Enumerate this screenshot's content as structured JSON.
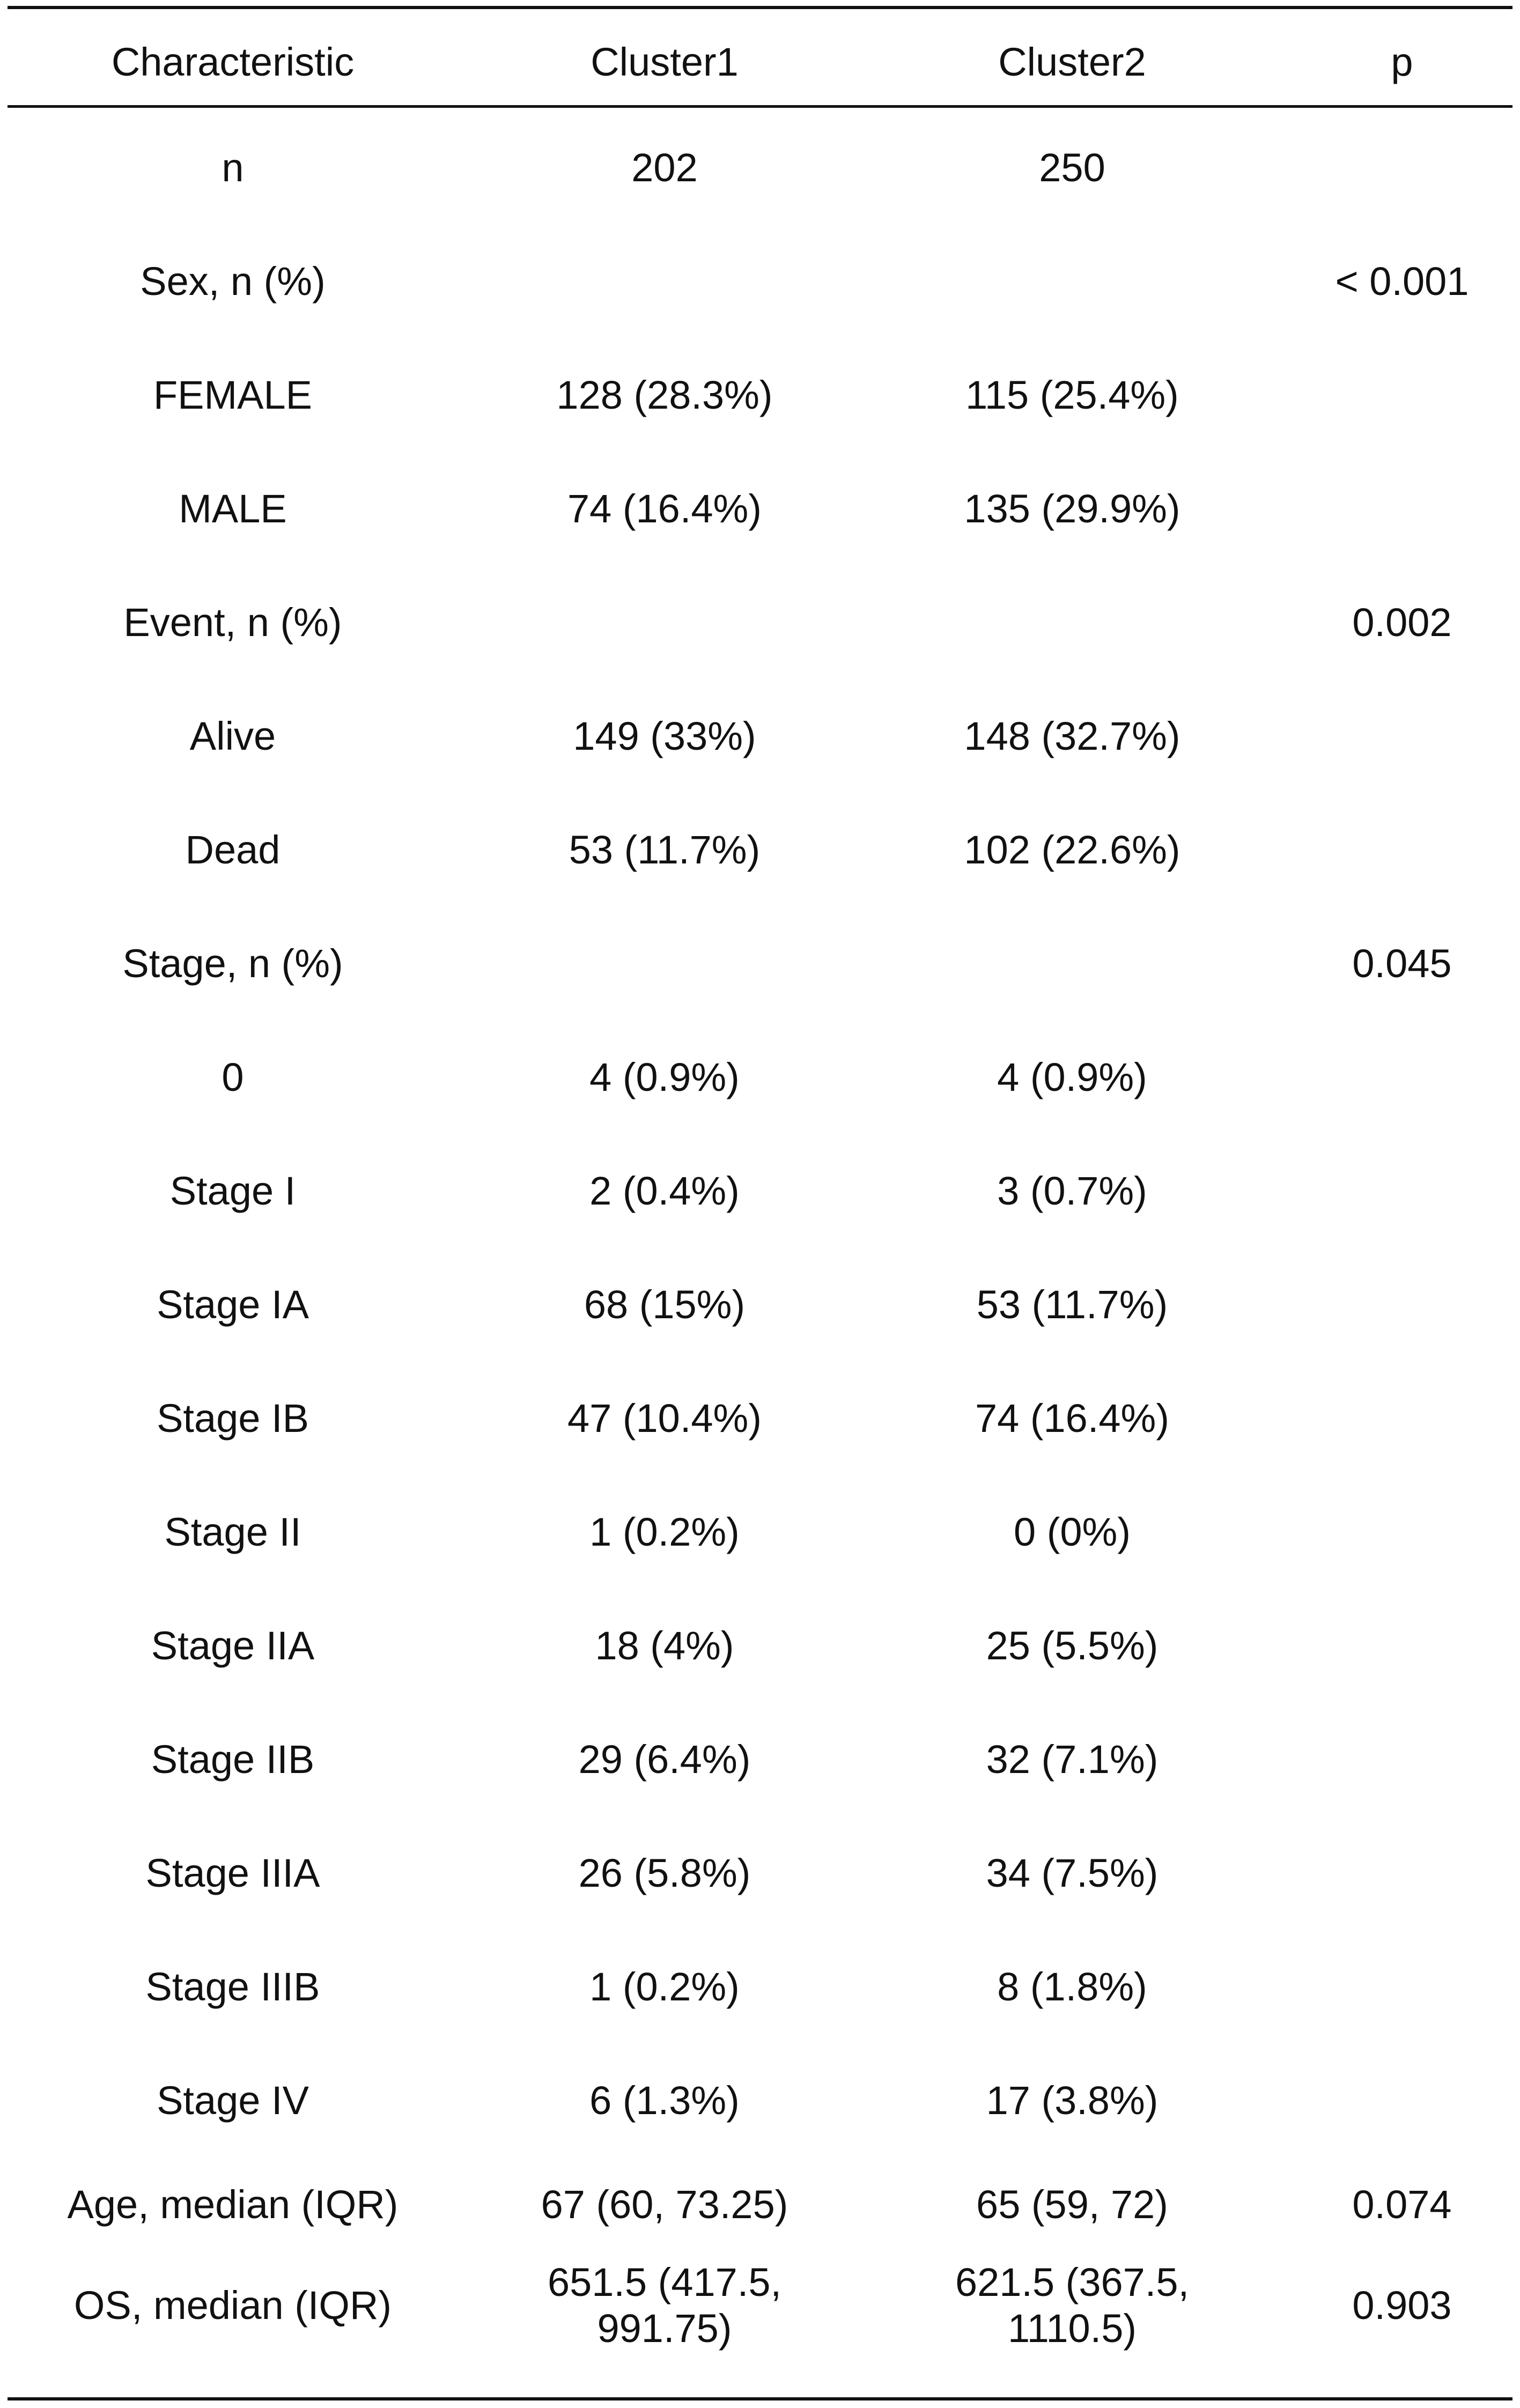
{
  "table": {
    "headers": [
      "Characteristic",
      "Cluster1",
      "Cluster2",
      "p"
    ],
    "rows": [
      [
        "n",
        "202",
        "250",
        ""
      ],
      [
        "Sex, n (%)",
        "",
        "",
        "< 0.001"
      ],
      [
        "FEMALE",
        "128 (28.3%)",
        "115 (25.4%)",
        ""
      ],
      [
        "MALE",
        "74 (16.4%)",
        "135 (29.9%)",
        ""
      ],
      [
        "Event, n (%)",
        "",
        "",
        "0.002"
      ],
      [
        "Alive",
        "149 (33%)",
        "148 (32.7%)",
        ""
      ],
      [
        "Dead",
        "53 (11.7%)",
        "102 (22.6%)",
        ""
      ],
      [
        "Stage, n (%)",
        "",
        "",
        "0.045"
      ],
      [
        "0",
        "4 (0.9%)",
        "4 (0.9%)",
        ""
      ],
      [
        "Stage I",
        "2 (0.4%)",
        "3 (0.7%)",
        ""
      ],
      [
        "Stage IA",
        "68 (15%)",
        "53 (11.7%)",
        ""
      ],
      [
        "Stage IB",
        "47 (10.4%)",
        "74 (16.4%)",
        ""
      ],
      [
        "Stage II",
        "1 (0.2%)",
        "0 (0%)",
        ""
      ],
      [
        "Stage IIA",
        "18 (4%)",
        "25 (5.5%)",
        ""
      ],
      [
        "Stage IIB",
        "29 (6.4%)",
        "32 (7.1%)",
        ""
      ],
      [
        "Stage IIIA",
        "26 (5.8%)",
        "34 (7.5%)",
        ""
      ],
      [
        "Stage IIIB",
        "1 (0.2%)",
        "8 (1.8%)",
        ""
      ],
      [
        "Stage IV",
        "6 (1.3%)",
        "17 (3.8%)",
        ""
      ],
      [
        "Age, median (IQR)",
        "67 (60, 73.25)",
        "65 (59, 72)",
        "0.074"
      ],
      [
        "OS, median (IQR)",
        "651.5 (417.5,\n991.75)",
        "621.5 (367.5,\n1110.5)",
        "0.903"
      ]
    ]
  }
}
